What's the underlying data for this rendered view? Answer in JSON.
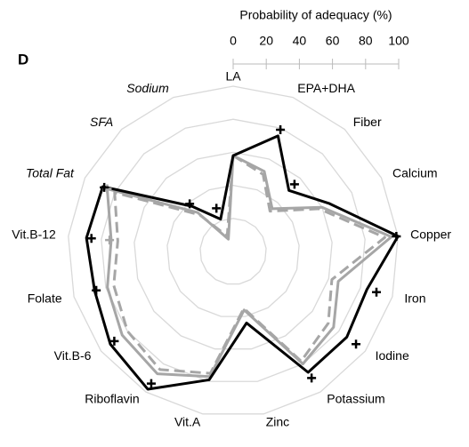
{
  "chart_data": {
    "type": "radar",
    "panel_label": "D",
    "scale_title": "Probability of adequacy (%)",
    "categories": [
      "LA",
      "EPA+DHA",
      "Fiber",
      "Calcium",
      "Copper",
      "Iron",
      "Iodine",
      "Potassium",
      "Zinc",
      "Vit.A",
      "Riboflavin",
      "Vit.B-6",
      "Folate",
      "Vit.B-12",
      "Total Fat",
      "SFA",
      "Sodium"
    ],
    "category_italic": [
      false,
      false,
      false,
      false,
      false,
      false,
      false,
      false,
      false,
      false,
      false,
      false,
      false,
      false,
      true,
      true,
      true
    ],
    "rlim": [
      0,
      100
    ],
    "rticks": [
      0,
      20,
      40,
      60,
      80,
      100
    ],
    "grid": true,
    "series": [
      {
        "color": "#a6a6a6",
        "style": "dashed",
        "values": [
          58,
          50,
          33,
          58,
          92,
          62,
          72,
          78,
          35,
          75,
          84,
          80,
          75,
          70,
          80,
          30,
          10
        ]
      },
      {
        "color": "#a6a6a6",
        "style": "solid",
        "values": [
          58,
          52,
          35,
          60,
          96,
          66,
          76,
          80,
          36,
          77,
          87,
          84,
          79,
          74,
          85,
          32,
          8
        ]
      },
      {
        "color": "#000000",
        "style": "solid",
        "values": [
          58,
          75,
          50,
          65,
          100,
          84,
          86,
          86,
          44,
          79,
          98,
          93,
          87,
          89,
          88,
          37,
          21
        ]
      },
      {
        "color": "#a6a6a6",
        "style": "marker",
        "values": [
          null,
          null,
          null,
          null,
          null,
          null,
          null,
          null,
          null,
          null,
          null,
          null,
          null,
          75,
          85,
          null,
          null
        ]
      },
      {
        "color": "#000000",
        "style": "marker",
        "values": [
          null,
          79,
          55,
          null,
          99,
          90,
          93,
          90,
          null,
          null,
          94,
          90,
          86,
          86,
          87,
          39,
          28
        ]
      }
    ]
  }
}
